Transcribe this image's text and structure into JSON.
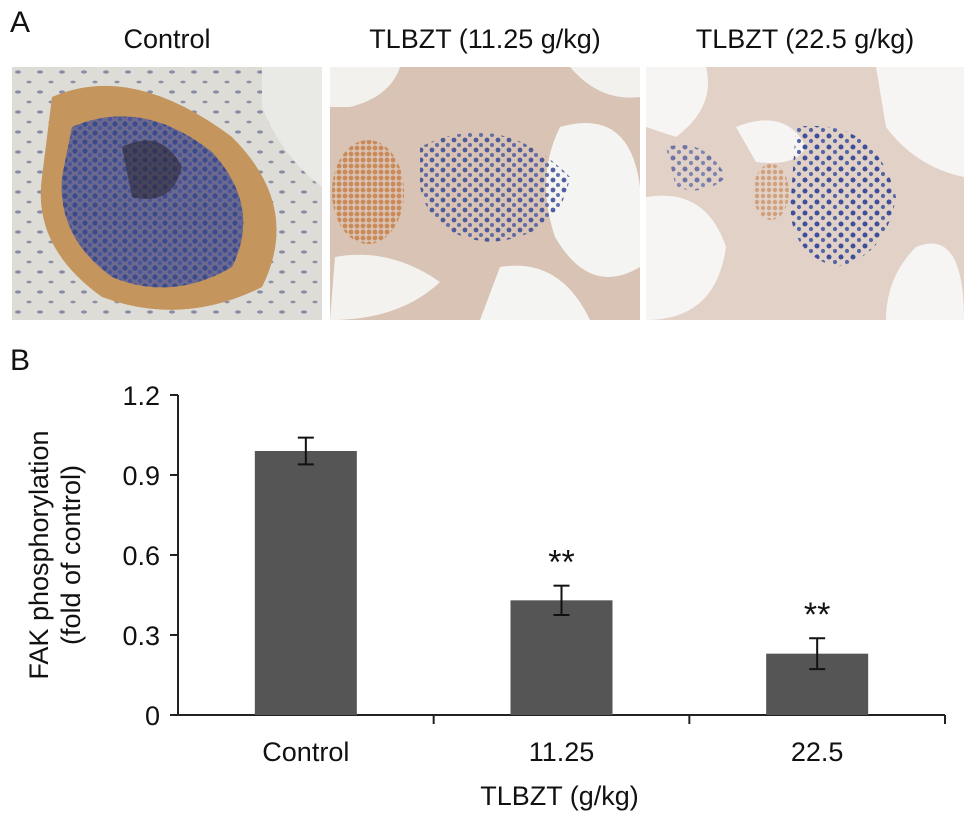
{
  "panel_a": {
    "letter": "A",
    "images": [
      {
        "title": "Control"
      },
      {
        "title": "TLBZT (11.25 g/kg)"
      },
      {
        "title": "TLBZT (22.5 g/kg)"
      }
    ]
  },
  "panel_b": {
    "letter": "B"
  },
  "chart_data": {
    "type": "bar",
    "categories": [
      "Control",
      "11.25",
      "22.5"
    ],
    "values": [
      0.99,
      0.43,
      0.23
    ],
    "errors": [
      0.05,
      0.055,
      0.058
    ],
    "annotations": [
      "",
      "**",
      "**"
    ],
    "ylabel_line1": "FAK phosphorylation",
    "ylabel_line2": "(fold of control)",
    "xlabel": "TLBZT (g/kg)",
    "ylim": [
      0,
      1.2
    ],
    "yticks": [
      0,
      0.3,
      0.6,
      0.9,
      1.2
    ],
    "ytick_labels": [
      "0",
      "0.3",
      "0.6",
      "0.9",
      "1.2"
    ],
    "bar_color": "#555555",
    "grid": false
  }
}
